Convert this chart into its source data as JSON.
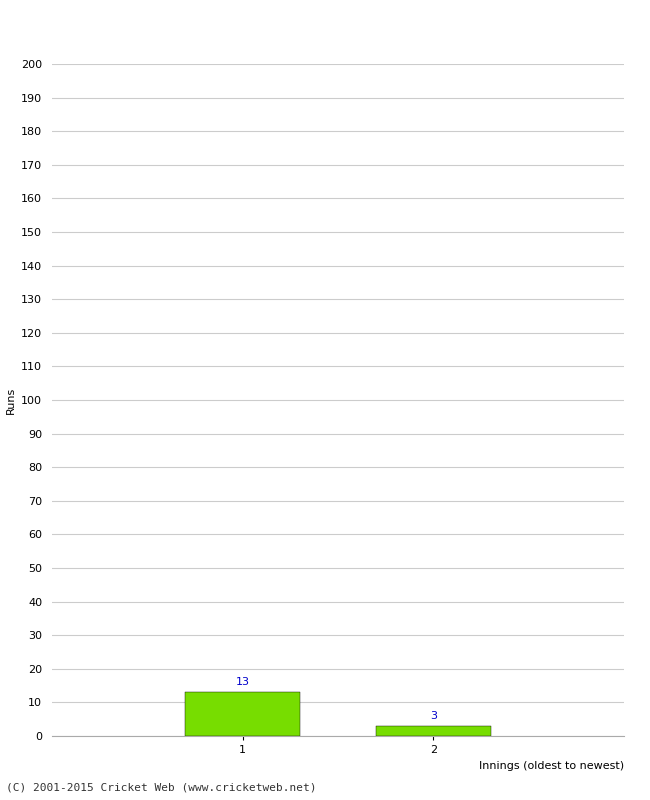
{
  "xlabel": "Innings (oldest to newest)",
  "ylabel": "Runs",
  "categories": [
    1,
    2
  ],
  "values": [
    13,
    3
  ],
  "bar_color": "#77dd00",
  "bar_edge_color": "#000000",
  "label_color": "#0000cc",
  "label_fontsize": 8,
  "ylim": [
    0,
    200
  ],
  "xlim": [
    0,
    3.0
  ],
  "ytick_step": 10,
  "background_color": "#ffffff",
  "grid_color": "#cccccc",
  "footer_text": "(C) 2001-2015 Cricket Web (www.cricketweb.net)",
  "footer_fontsize": 8,
  "axis_label_fontsize": 8,
  "tick_fontsize": 8,
  "bar_width": 0.6
}
